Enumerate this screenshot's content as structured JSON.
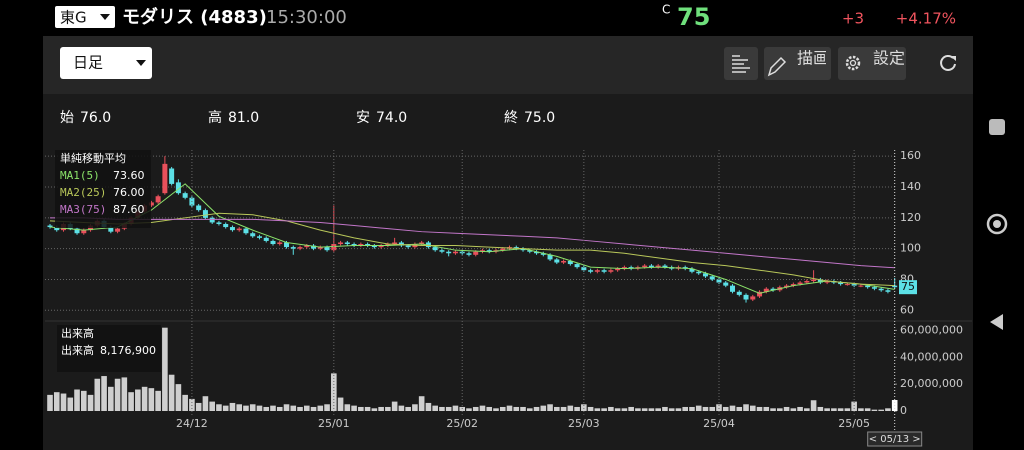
{
  "header": {
    "market": "東G",
    "name": "モダリス (4883)",
    "time": "15:30:00",
    "price_prefix": "C",
    "price": "75",
    "change": "+3",
    "change_pct": "+4.17%"
  },
  "toolbar": {
    "period": "日足",
    "draw": "描画",
    "settings": "設定"
  },
  "ohlc_row": [
    {
      "label": "始",
      "value": "76.0"
    },
    {
      "label": "高",
      "value": "81.0"
    },
    {
      "label": "安",
      "value": "74.0"
    },
    {
      "label": "終",
      "value": "75.0"
    }
  ],
  "chart_data": [
    {
      "type": "candlestick",
      "title": "単純移動平均",
      "up_color": "#e8505b",
      "down_color": "#5ce0e6",
      "grid": true,
      "price_tag": "75",
      "xlim": [
        -0.75,
        125.6
      ],
      "ylim": [
        55,
        164
      ],
      "yticks": [
        60,
        80,
        100,
        120,
        140,
        160
      ],
      "open": [
        115,
        114,
        112,
        116,
        113,
        110,
        112,
        115,
        118,
        114,
        111,
        113,
        116,
        120,
        124,
        128,
        130,
        136,
        152,
        143,
        136,
        133,
        128,
        125,
        120,
        117,
        116,
        114,
        112,
        113,
        110,
        108,
        107,
        105,
        103,
        104,
        101,
        100,
        101,
        102,
        100,
        101,
        99,
        103,
        104,
        103,
        102,
        103,
        102,
        101,
        102,
        103,
        104,
        102,
        101,
        103,
        104,
        101,
        99,
        98,
        97,
        98,
        97,
        96,
        98,
        99,
        98,
        99,
        100,
        101,
        100,
        99,
        98,
        97,
        96,
        93,
        91,
        92,
        90,
        88,
        86,
        85,
        86,
        85,
        86,
        87,
        88,
        87,
        88,
        89,
        88,
        89,
        88,
        87,
        88,
        87,
        85,
        84,
        82,
        80,
        78,
        76,
        72,
        70,
        67,
        69,
        72,
        74,
        73,
        75,
        76,
        77,
        78,
        79,
        80,
        78,
        79,
        78,
        77,
        77,
        76,
        76,
        75,
        74,
        73,
        76
      ],
      "high": [
        116,
        115,
        117,
        117,
        114,
        113,
        116,
        119,
        119,
        115,
        114,
        117,
        121,
        125,
        129,
        131,
        135,
        160,
        153,
        145,
        137,
        134,
        129,
        126,
        121,
        118,
        117,
        115,
        114,
        114,
        111,
        109,
        108,
        106,
        105,
        105,
        102,
        102,
        103,
        103,
        102,
        102,
        128,
        105,
        105,
        104,
        104,
        104,
        103,
        103,
        104,
        107,
        105,
        103,
        104,
        105,
        105,
        102,
        100,
        99,
        99,
        99,
        98,
        99,
        100,
        100,
        100,
        101,
        102,
        102,
        101,
        100,
        99,
        98,
        97,
        94,
        93,
        93,
        91,
        89,
        87,
        87,
        87,
        87,
        88,
        89,
        89,
        89,
        90,
        90,
        90,
        90,
        89,
        89,
        89,
        88,
        86,
        85,
        83,
        81,
        79,
        77,
        73,
        71,
        70,
        73,
        75,
        75,
        76,
        77,
        78,
        79,
        80,
        86,
        81,
        80,
        80,
        79,
        78,
        78,
        77,
        77,
        76,
        75,
        74,
        81
      ],
      "low": [
        113,
        111,
        111,
        112,
        109,
        109,
        111,
        114,
        113,
        110,
        110,
        112,
        115,
        119,
        123,
        127,
        129,
        135,
        141,
        135,
        132,
        127,
        124,
        119,
        116,
        115,
        113,
        111,
        111,
        109,
        107,
        106,
        104,
        102,
        102,
        100,
        96,
        99,
        100,
        99,
        99,
        98,
        98,
        102,
        102,
        101,
        101,
        101,
        100,
        100,
        101,
        102,
        101,
        100,
        100,
        102,
        100,
        98,
        97,
        95,
        96,
        96,
        95,
        95,
        97,
        97,
        97,
        98,
        99,
        99,
        98,
        97,
        96,
        95,
        92,
        90,
        90,
        89,
        87,
        85,
        84,
        84,
        84,
        84,
        85,
        86,
        86,
        86,
        87,
        87,
        87,
        87,
        86,
        86,
        86,
        84,
        83,
        81,
        79,
        77,
        75,
        71,
        69,
        65,
        66,
        68,
        71,
        72,
        72,
        74,
        75,
        76,
        77,
        78,
        77,
        77,
        77,
        76,
        76,
        75,
        75,
        74,
        73,
        72,
        71,
        74
      ],
      "close": [
        114,
        112,
        116,
        113,
        110,
        112,
        115,
        118,
        114,
        111,
        113,
        116,
        120,
        124,
        128,
        130,
        134,
        155,
        142,
        136,
        133,
        128,
        125,
        120,
        117,
        116,
        114,
        112,
        113,
        110,
        108,
        107,
        105,
        103,
        104,
        101,
        100,
        101,
        102,
        100,
        101,
        99,
        103,
        104,
        103,
        102,
        103,
        102,
        101,
        102,
        103,
        104,
        102,
        101,
        103,
        104,
        101,
        99,
        98,
        97,
        98,
        97,
        96,
        98,
        99,
        98,
        99,
        100,
        101,
        100,
        99,
        98,
        97,
        96,
        93,
        91,
        92,
        90,
        88,
        86,
        85,
        86,
        85,
        86,
        87,
        88,
        87,
        88,
        89,
        88,
        89,
        88,
        87,
        88,
        87,
        85,
        84,
        82,
        80,
        78,
        76,
        72,
        70,
        67,
        69,
        72,
        74,
        73,
        75,
        76,
        77,
        78,
        79,
        80,
        78,
        79,
        78,
        77,
        77,
        76,
        76,
        75,
        74,
        73,
        72,
        75
      ],
      "series": [
        {
          "name": "MA1(5)",
          "color": "#8be36a",
          "value_label": "73.60",
          "x": [
            0,
            5,
            10,
            15,
            20,
            25,
            30,
            35,
            40,
            45,
            50,
            55,
            60,
            65,
            70,
            75,
            80,
            85,
            90,
            95,
            100,
            105,
            110,
            115,
            120,
            125
          ],
          "values": [
            114,
            112,
            114,
            125,
            142,
            121,
            112,
            104,
            101,
            102,
            102,
            103,
            99,
            98,
            100,
            95,
            88,
            87,
            88,
            87,
            80,
            71,
            76,
            79,
            77,
            73.6
          ]
        },
        {
          "name": "MA2(25)",
          "color": "#b9c85a",
          "value_label": "76.00",
          "x": [
            0,
            5,
            10,
            15,
            20,
            25,
            30,
            35,
            40,
            45,
            50,
            55,
            60,
            65,
            70,
            75,
            80,
            85,
            90,
            95,
            100,
            105,
            110,
            115,
            120,
            125
          ],
          "values": [
            118,
            117,
            116,
            117,
            120,
            123,
            122,
            118,
            112,
            107,
            103,
            102,
            102,
            101,
            100,
            99,
            99,
            97,
            94,
            91,
            89,
            86,
            83,
            79,
            77,
            76
          ]
        },
        {
          "name": "MA3(75)",
          "color": "#c276c9",
          "value_label": "87.60",
          "x": [
            0,
            5,
            10,
            15,
            20,
            25,
            30,
            35,
            40,
            45,
            50,
            55,
            60,
            65,
            70,
            75,
            80,
            85,
            90,
            95,
            100,
            105,
            110,
            115,
            120,
            125
          ],
          "values": [
            120,
            120,
            119,
            119,
            119,
            119,
            119,
            118,
            117,
            115,
            113,
            111,
            110,
            109,
            108,
            107,
            105,
            103,
            101,
            99,
            97,
            95,
            93,
            91,
            89,
            87.6
          ]
        }
      ]
    },
    {
      "type": "bar",
      "title": "出来高",
      "latest_label": "8,176,900",
      "color": "#cfcfcf",
      "grid": true,
      "cursor_label": "< 05/13 >",
      "xlim": [
        -0.75,
        125.6
      ],
      "ylim": [
        0,
        64000000
      ],
      "yticks": [
        0,
        {
          "value": 20000000,
          "label": "20,000,000"
        },
        {
          "value": 40000000,
          "label": "40,000,000"
        },
        {
          "value": 60000000,
          "label": "60,000,000"
        }
      ],
      "xticks": [
        {
          "value": 21,
          "label": "24/12"
        },
        {
          "value": 42,
          "label": "25/01"
        },
        {
          "value": 61,
          "label": "25/02"
        },
        {
          "value": 79,
          "label": "25/03"
        },
        {
          "value": 99,
          "label": "25/04"
        },
        {
          "value": 119,
          "label": "25/05"
        }
      ],
      "values": [
        12000000,
        14000000,
        13000000,
        10000000,
        16000000,
        15000000,
        12000000,
        24000000,
        26000000,
        18000000,
        24000000,
        25000000,
        14000000,
        16000000,
        18000000,
        17000000,
        15000000,
        62000000,
        27000000,
        20000000,
        12000000,
        9000000,
        6000000,
        11000000,
        7000000,
        5000000,
        4000000,
        6000000,
        5000000,
        4000000,
        5000000,
        4000000,
        3000000,
        4000000,
        3000000,
        5000000,
        4000000,
        3000000,
        4000000,
        3000000,
        4000000,
        5000000,
        28000000,
        10000000,
        5000000,
        4000000,
        3000000,
        3000000,
        2000000,
        3000000,
        3000000,
        7000000,
        4000000,
        3000000,
        5000000,
        11000000,
        6000000,
        4000000,
        3000000,
        3000000,
        4000000,
        3000000,
        2000000,
        3000000,
        4000000,
        3000000,
        2000000,
        3000000,
        4000000,
        3000000,
        3000000,
        2000000,
        3000000,
        4000000,
        5000000,
        3000000,
        3000000,
        4000000,
        3000000,
        5000000,
        3000000,
        2000000,
        2000000,
        3000000,
        2000000,
        2000000,
        3000000,
        2000000,
        2000000,
        2000000,
        2000000,
        3000000,
        2000000,
        2000000,
        3000000,
        3000000,
        4000000,
        3000000,
        3000000,
        5000000,
        3000000,
        4000000,
        3000000,
        5000000,
        4000000,
        3000000,
        3000000,
        2000000,
        2000000,
        3000000,
        2000000,
        3000000,
        2000000,
        8000000,
        3000000,
        2000000,
        2000000,
        2000000,
        2000000,
        7000000,
        2000000,
        2000000,
        1000000,
        1000000,
        2000000,
        8176900
      ]
    }
  ]
}
